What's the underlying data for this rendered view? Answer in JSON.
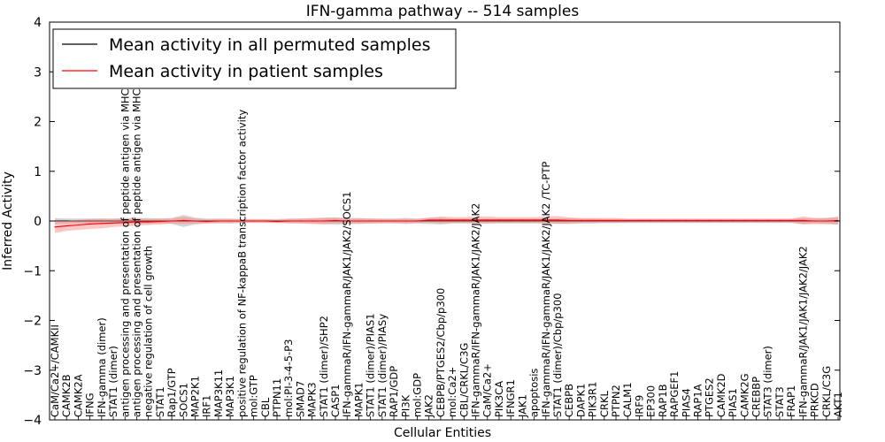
{
  "chart_data": {
    "type": "line",
    "title": "IFN-gamma pathway -- 514 samples",
    "xlabel": "Cellular Entities",
    "ylabel": "Inferred Activity",
    "ylim": [
      -4,
      4
    ],
    "yticks": [
      -4,
      -3,
      -2,
      -1,
      0,
      1,
      2,
      3,
      4
    ],
    "categories": [
      "CaM/Ca2+/CAMKII",
      "CAMK2B",
      "CAMK2A",
      "IFNG",
      "IFN-gamma (dimer)",
      "STAT1 (dimer)",
      "antigen processing and presentation of peptide antigen via MHC class I",
      "antigen processing and presentation of peptide antigen via MHC class II",
      "negative regulation of cell growth",
      "STAT1",
      "Rap1/GTP",
      "SOCS1",
      "MAP2K1",
      "IRF1",
      "MAP3K11",
      "MAP3K1",
      "positive regulation of NF-kappaB transcription factor activity",
      "mol:GTP",
      "CBL",
      "PTPN11",
      "mol:PI-3-4-5-P3",
      "SMAD7",
      "MAPK3",
      "STAT1 (dimer)/SHP2",
      "CASP1",
      "IFN-gammaR/IFN-gammaR/JAK1/JAK2/SOCS1",
      "MAPK1",
      "STAT1 (dimer)/PIAS1",
      "STAT1 (dimer)/PIASy",
      "RAP1/GDP",
      "PI3K",
      "mol:GDP",
      "JAK2",
      "CEBPB/PTGES2/Cbp/p300",
      "mol:Ca2+",
      "CBL/CRKL/C3G",
      "IFN-gammaR/IFN-gammaR/JAK1/JAK2/JAK2",
      "CaM/Ca2+",
      "PIK3CA",
      "IFNGR1",
      "JAK1",
      "apoptosis",
      "IFN-gammaR/IFN-gammaR/JAK1/JAK2/JAK2  /TC-PTP",
      "STAT1 (dimer)/Cbp/p300",
      "CEBPB",
      "DAPK1",
      "PIK3R1",
      "CRKL",
      "PTPN2",
      "CALM1",
      "IRF9",
      "EP300",
      "RAP1B",
      "RAPGEF1",
      "PIAS4",
      "RAP1A",
      "PTGES2",
      "CAMK2D",
      "PIAS1",
      "CAMK2G",
      "CREBBP",
      "STAT3 (dimer)",
      "STAT3",
      "FRAP1",
      "IFN-gammaR/JAK1/JAK1/JAK2/JAK2",
      "PRKCD",
      "CRKL/C3G",
      "AKT1"
    ],
    "series": [
      {
        "name": "Mean activity in all permuted samples",
        "color": "#000000",
        "band_color": "#b0b0b0",
        "values": [
          0,
          0,
          0,
          0,
          0,
          0,
          0,
          0,
          0,
          0,
          0,
          0,
          0,
          0,
          0,
          0,
          0,
          0,
          0,
          0,
          0,
          0,
          0,
          0,
          0,
          0,
          0,
          0,
          0,
          0,
          0,
          0,
          0,
          0,
          0,
          0,
          0,
          0,
          0,
          0,
          0,
          0,
          0,
          0,
          0,
          0,
          0,
          0,
          0,
          0,
          0,
          0,
          0,
          0,
          0,
          0,
          0,
          0,
          0,
          0,
          0,
          0,
          0,
          0,
          0,
          0,
          0,
          0
        ],
        "spread": [
          0.06,
          0.05,
          0.05,
          0.05,
          0.05,
          0.05,
          0.06,
          0.06,
          0.06,
          0.05,
          0.06,
          0.12,
          0.07,
          0.05,
          0.05,
          0.05,
          0.04,
          0.04,
          0.04,
          0.04,
          0.05,
          0.05,
          0.05,
          0.06,
          0.07,
          0.06,
          0.06,
          0.05,
          0.05,
          0.05,
          0.06,
          0.05,
          0.06,
          0.07,
          0.05,
          0.05,
          0.05,
          0.05,
          0.05,
          0.05,
          0.05,
          0.05,
          0.05,
          0.05,
          0.06,
          0.05,
          0.05,
          0.04,
          0.04,
          0.04,
          0.04,
          0.04,
          0.04,
          0.04,
          0.04,
          0.04,
          0.04,
          0.04,
          0.04,
          0.04,
          0.04,
          0.04,
          0.04,
          0.04,
          0.06,
          0.05,
          0.06,
          0.07
        ]
      },
      {
        "name": "Mean activity in patient samples",
        "color": "#ff0000",
        "band_color": "#ff8080",
        "values": [
          -0.12,
          -0.1,
          -0.08,
          -0.06,
          -0.05,
          -0.04,
          -0.03,
          -0.02,
          -0.02,
          -0.01,
          0,
          0.01,
          0,
          -0.01,
          0,
          0,
          0,
          0,
          0,
          -0.01,
          0,
          0,
          0,
          0,
          0.01,
          0,
          0,
          0,
          0,
          0,
          0,
          0,
          0.02,
          0.02,
          0.02,
          0.02,
          0.02,
          0.02,
          0.02,
          0.02,
          0.02,
          0.02,
          0.02,
          0.02,
          0.01,
          0.01,
          0.01,
          0.01,
          0.01,
          0.01,
          0.01,
          0.01,
          0.01,
          0.01,
          0.01,
          0.01,
          0.01,
          0.01,
          0.01,
          0.01,
          0.01,
          0.01,
          0.01,
          0.01,
          0.01,
          0,
          0,
          0.01
        ],
        "spread": [
          0.12,
          0.1,
          0.1,
          0.1,
          0.1,
          0.08,
          0.08,
          0.07,
          0.06,
          0.06,
          0.05,
          0.07,
          0.05,
          0.04,
          0.04,
          0.04,
          0.03,
          0.03,
          0.03,
          0.03,
          0.04,
          0.05,
          0.06,
          0.07,
          0.06,
          0.05,
          0.05,
          0.05,
          0.04,
          0.04,
          0.04,
          0.04,
          0.05,
          0.07,
          0.06,
          0.06,
          0.07,
          0.07,
          0.06,
          0.06,
          0.06,
          0.06,
          0.07,
          0.08,
          0.06,
          0.05,
          0.05,
          0.05,
          0.05,
          0.04,
          0.04,
          0.04,
          0.04,
          0.04,
          0.04,
          0.04,
          0.04,
          0.04,
          0.04,
          0.04,
          0.04,
          0.04,
          0.04,
          0.04,
          0.08,
          0.06,
          0.06,
          0.08
        ]
      }
    ],
    "legend": {
      "position": "top-left",
      "entries": [
        "Mean activity in all permuted samples",
        "Mean activity in patient samples"
      ]
    }
  }
}
